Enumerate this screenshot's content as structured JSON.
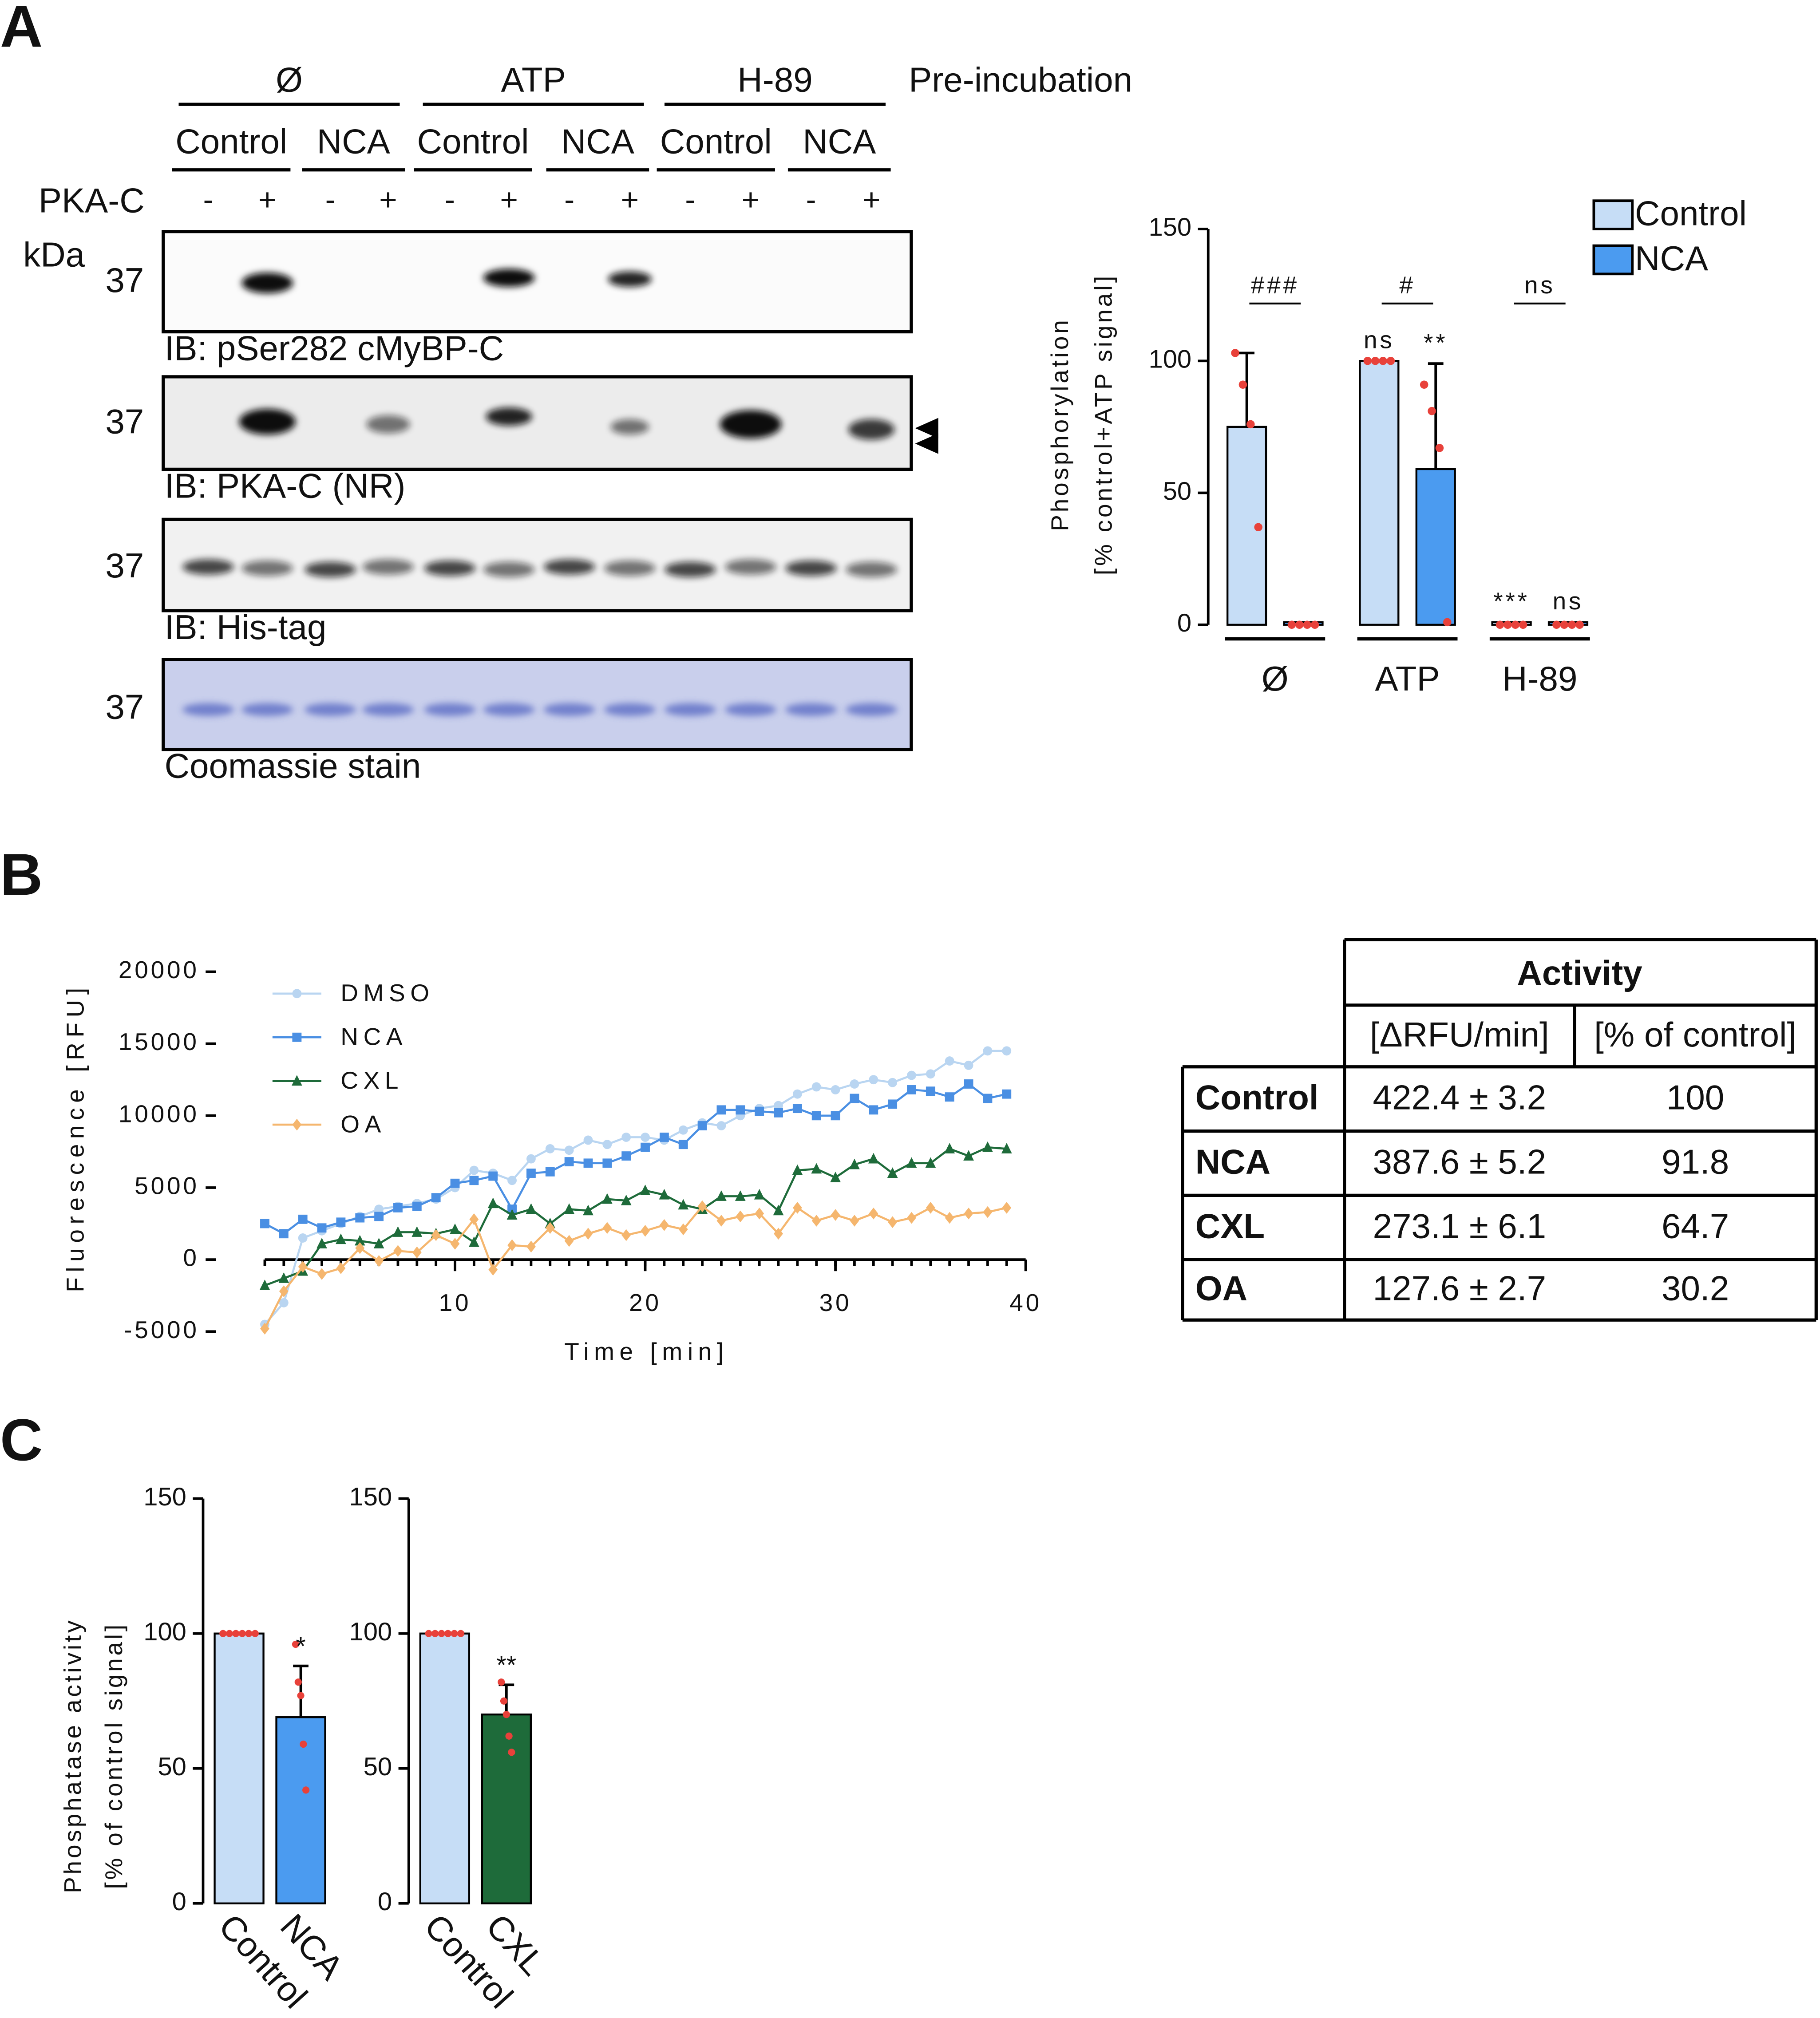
{
  "panel_labels": [
    "A",
    "B",
    "C"
  ],
  "blot": {
    "pre_incubation": [
      "Ø",
      "ATP",
      "H-89"
    ],
    "pre_incubation_title": "Pre-incubation",
    "groups": [
      "Control",
      "NCA",
      "Control",
      "NCA",
      "Control",
      "NCA"
    ],
    "pkac_label": "PKA-C",
    "pkac": [
      "-",
      "+",
      "-",
      "+",
      "-",
      "+",
      "-",
      "+",
      "-",
      "+",
      "-",
      "+"
    ],
    "kda": "kDa",
    "panels": [
      {
        "marker": "37",
        "caption": "IB: pSer282 cMyBP-C"
      },
      {
        "marker": "37",
        "caption": "IB: PKA-C (NR)"
      },
      {
        "marker": "37",
        "caption": "IB: His-tag"
      },
      {
        "marker": "37",
        "caption": "Coomassie stain"
      }
    ]
  },
  "chart_data": [
    {
      "type": "bar",
      "ylabel": [
        "Phosphorylation",
        "[% control+ATP signal]"
      ],
      "categories": [
        "Ø",
        "ATP",
        "H-89"
      ],
      "comparison_labels": [
        "###",
        "#",
        "ns"
      ],
      "series": [
        {
          "name": "Control",
          "color": "#c6ddf6",
          "values": [
            75,
            100,
            1
          ],
          "errors": [
            28,
            null,
            null
          ],
          "points": [
            [
              103,
              91,
              76,
              37
            ],
            [
              100,
              100,
              100,
              100
            ],
            [
              0,
              0,
              0,
              0
            ]
          ],
          "annotations": [
            null,
            "ns",
            "***"
          ]
        },
        {
          "name": "NCA",
          "color": "#4b9bf0",
          "values": [
            1,
            59,
            1
          ],
          "errors": [
            null,
            40,
            null
          ],
          "points": [
            [
              0,
              0,
              0,
              0
            ],
            [
              91,
              81,
              67,
              1
            ],
            [
              0,
              0,
              0,
              0
            ]
          ],
          "annotations": [
            null,
            "**",
            "ns"
          ]
        }
      ],
      "ylim": [
        0,
        150
      ],
      "yticks": [
        0,
        50,
        100,
        150
      ],
      "legend": "top-right",
      "point_color": "#e8413a"
    },
    {
      "type": "line",
      "xlabel": "Time [min]",
      "ylabel": "Fluorescence [RFU]",
      "x": [
        0,
        1,
        2,
        3,
        4,
        5,
        6,
        7,
        8,
        9,
        10,
        11,
        12,
        13,
        14,
        15,
        16,
        17,
        18,
        19,
        20,
        21,
        22,
        23,
        24,
        25,
        26,
        27,
        28,
        29,
        30,
        31,
        32,
        33,
        34,
        35,
        36,
        37,
        38,
        39
      ],
      "series": [
        {
          "name": "DMSO",
          "color": "#b9d5f1",
          "marker": "circle",
          "values": [
            -4500,
            -3000,
            1500,
            2000,
            2500,
            3000,
            3500,
            3700,
            3900,
            4200,
            5000,
            6200,
            6000,
            5500,
            7000,
            7700,
            7600,
            8300,
            8000,
            8500,
            8500,
            8300,
            9000,
            9500,
            9300,
            10000,
            10500,
            10700,
            11500,
            12000,
            11800,
            12200,
            12500,
            12300,
            12800,
            12900,
            13800,
            13500,
            14500,
            14500
          ]
        },
        {
          "name": "NCA",
          "color": "#4a8fe3",
          "marker": "square",
          "values": [
            2500,
            1800,
            2800,
            2200,
            2600,
            2900,
            3000,
            3600,
            3700,
            4300,
            5300,
            5500,
            5800,
            3500,
            6000,
            6100,
            6800,
            6700,
            6700,
            7200,
            7800,
            8500,
            8000,
            9300,
            10400,
            10400,
            10300,
            10200,
            10500,
            10000,
            10000,
            11200,
            10400,
            10800,
            11800,
            11700,
            11300,
            12200,
            11200,
            11500
          ]
        },
        {
          "name": "CXL",
          "color": "#1e6b3a",
          "marker": "triangle",
          "values": [
            -1800,
            -1300,
            -800,
            1100,
            1400,
            1300,
            1100,
            1900,
            1900,
            1800,
            2100,
            1200,
            3900,
            3100,
            3500,
            2500,
            3500,
            3400,
            4200,
            4100,
            4800,
            4500,
            3800,
            3500,
            4400,
            4400,
            4500,
            3400,
            6200,
            6300,
            5700,
            6600,
            7000,
            6000,
            6700,
            6700,
            7700,
            7200,
            7800,
            7700
          ]
        },
        {
          "name": "OA",
          "color": "#f5b66e",
          "marker": "diamond",
          "values": [
            -4800,
            -2200,
            -500,
            -1000,
            -600,
            800,
            -100,
            600,
            500,
            1700,
            1100,
            2800,
            -700,
            1000,
            900,
            2200,
            1300,
            1800,
            2200,
            1700,
            2000,
            2400,
            2100,
            3700,
            2700,
            3000,
            3200,
            1800,
            3600,
            2700,
            3100,
            2700,
            3200,
            2600,
            2900,
            3600,
            2900,
            3200,
            3300,
            3600
          ]
        }
      ],
      "xlim": [
        0,
        40
      ],
      "xticks": [
        10,
        20,
        30,
        40
      ],
      "ylim": [
        -5000,
        20000
      ],
      "yticks": [
        -5000,
        0,
        5000,
        10000,
        15000,
        20000
      ],
      "legend": "top-left"
    },
    {
      "type": "bar",
      "ylabel": [
        "Phosphatase activity",
        "[% of control signal]"
      ],
      "categories": [
        "Control",
        "NCA"
      ],
      "colors": [
        "#c6ddf6",
        "#4b9bf0"
      ],
      "values": [
        100,
        69
      ],
      "errors": [
        null,
        19
      ],
      "points": [
        [
          100,
          100,
          100,
          100,
          100,
          100
        ],
        [
          96,
          82,
          77,
          59,
          42
        ]
      ],
      "annotations": [
        null,
        "*"
      ],
      "ylim": [
        0,
        150
      ],
      "yticks": [
        0,
        50,
        100,
        150
      ],
      "point_color": "#e8413a"
    },
    {
      "type": "bar",
      "categories": [
        "Control",
        "CXL"
      ],
      "colors": [
        "#c6ddf6",
        "#1e6b3a"
      ],
      "values": [
        100,
        70
      ],
      "errors": [
        null,
        11
      ],
      "points": [
        [
          100,
          100,
          100,
          100,
          100,
          100
        ],
        [
          82,
          75,
          70,
          62,
          56
        ]
      ],
      "annotations": [
        null,
        "**"
      ],
      "ylim": [
        0,
        150
      ],
      "yticks": [
        0,
        50,
        100,
        150
      ],
      "point_color": "#e8413a"
    }
  ],
  "table": {
    "header": "Activity",
    "subheaders": [
      "[ΔRFU/min]",
      "[% of control]"
    ],
    "rows": [
      [
        "Control",
        "422.4 ± 3.2",
        "100"
      ],
      [
        "NCA",
        "387.6 ± 5.2",
        "91.8"
      ],
      [
        "CXL",
        "273.1 ± 6.1",
        "64.7"
      ],
      [
        "OA",
        "127.6 ± 2.7",
        "30.2"
      ]
    ]
  }
}
